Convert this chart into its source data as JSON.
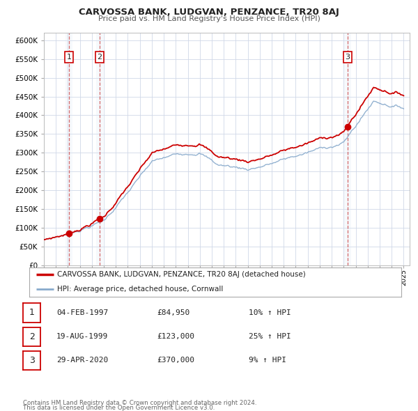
{
  "title": "CARVOSSA BANK, LUDGVAN, PENZANCE, TR20 8AJ",
  "subtitle": "Price paid vs. HM Land Registry's House Price Index (HPI)",
  "hpi_label": "HPI: Average price, detached house, Cornwall",
  "property_label": "CARVOSSA BANK, LUDGVAN, PENZANCE, TR20 8AJ (detached house)",
  "red_color": "#cc0000",
  "blue_color": "#88aacc",
  "background_color": "#ffffff",
  "grid_color": "#d0d8e8",
  "shade_color": "#dde8f5",
  "xmin": 1995.0,
  "xmax": 2025.5,
  "ymin": 0,
  "ymax": 620000,
  "yticks": [
    0,
    50000,
    100000,
    150000,
    200000,
    250000,
    300000,
    350000,
    400000,
    450000,
    500000,
    550000,
    600000
  ],
  "sale_dates": [
    1997.09,
    1999.64,
    2020.33
  ],
  "sale_prices": [
    84950,
    123000,
    370000
  ],
  "sale_labels": [
    "1",
    "2",
    "3"
  ],
  "table_entries": [
    {
      "num": "1",
      "date": "04-FEB-1997",
      "price": "£84,950",
      "hpi": "10% ↑ HPI"
    },
    {
      "num": "2",
      "date": "19-AUG-1999",
      "price": "£123,000",
      "hpi": "25% ↑ HPI"
    },
    {
      "num": "3",
      "date": "29-APR-2020",
      "price": "£370,000",
      "hpi": "9% ↑ HPI"
    }
  ],
  "footnote1": "Contains HM Land Registry data © Crown copyright and database right 2024.",
  "footnote2": "This data is licensed under the Open Government Licence v3.0."
}
